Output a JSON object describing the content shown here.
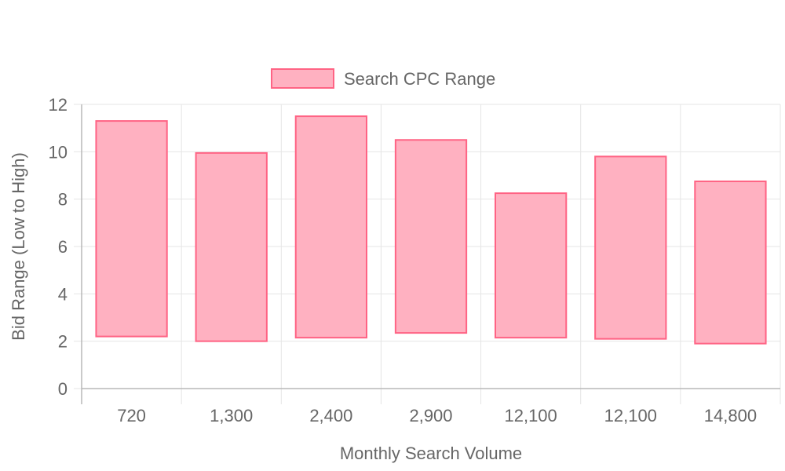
{
  "chart_data": {
    "type": "bar",
    "subtype": "floating-range",
    "categories": [
      "720",
      "1,300",
      "2,400",
      "2,900",
      "12,100",
      "12,100",
      "14,800"
    ],
    "series": [
      {
        "name": "Search CPC Range",
        "low": [
          2.2,
          2.0,
          2.15,
          2.35,
          2.15,
          2.1,
          1.9
        ],
        "high": [
          11.3,
          9.95,
          11.5,
          10.5,
          8.25,
          9.8,
          8.75
        ],
        "fill_color": "#ffb1c1",
        "border_color": "#ff6384"
      }
    ],
    "xlabel": "Monthly Search Volume",
    "ylabel": "Bid Range (Low to High)",
    "ylim": [
      0,
      12
    ],
    "yticks": [
      "0",
      "2",
      "4",
      "6",
      "8",
      "10",
      "12"
    ],
    "grid": true,
    "legend_position": "top"
  }
}
